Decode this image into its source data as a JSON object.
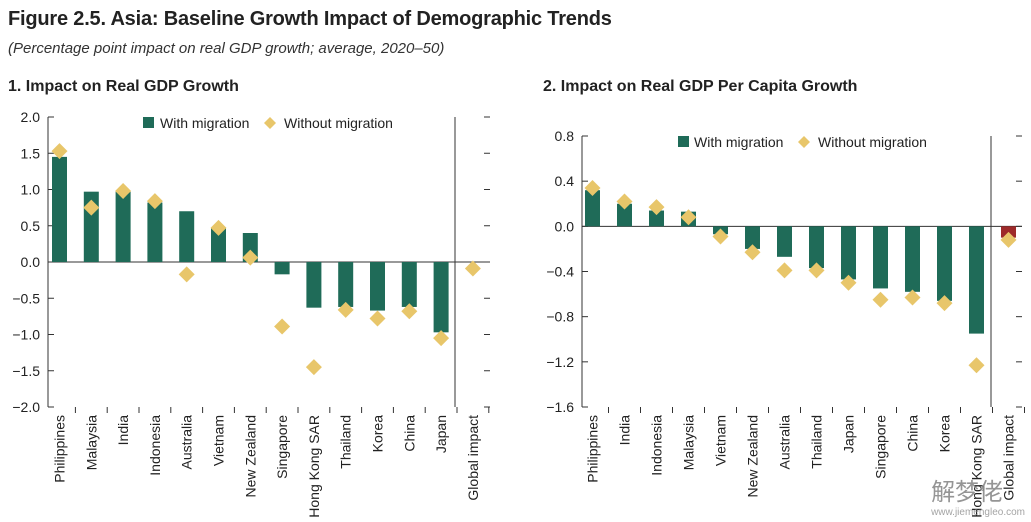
{
  "figure_title": "Figure 2.5. Asia: Baseline Growth Impact of Demographic Trends",
  "figure_subtitle": "(Percentage point impact on real GDP growth; average, 2020–50)",
  "watermark": {
    "text": "解梦佬",
    "url": "www.jiemengleo.com"
  },
  "colors": {
    "bar": "#1f6b58",
    "diamond": "#e8c66a",
    "negative_global_bar": "#9e2a2a"
  },
  "chart_data": [
    {
      "type": "bar",
      "title": "1. Impact on Real GDP Growth",
      "categories": [
        "Philippines",
        "Malaysia",
        "India",
        "Indonesia",
        "Australia",
        "Vietnam",
        "New Zealand",
        "Singapore",
        "Hong Kong SAR",
        "Thailand",
        "Korea",
        "China",
        "Japan",
        "Global impact"
      ],
      "series": [
        {
          "name": "With migration",
          "values": [
            1.45,
            0.97,
            0.97,
            0.82,
            0.7,
            0.47,
            0.4,
            -0.17,
            -0.63,
            -0.62,
            -0.67,
            -0.62,
            -0.97,
            0
          ]
        },
        {
          "name": "Without migration",
          "values": [
            1.53,
            0.75,
            0.98,
            0.84,
            -0.17,
            0.47,
            0.06,
            -0.89,
            -1.45,
            -0.66,
            -0.78,
            -0.68,
            -1.05,
            -0.09
          ]
        }
      ],
      "yticks": [
        "2.0",
        "1.5",
        "1.0",
        "0.5",
        "0.0",
        "−0.5",
        "−1.0",
        "−1.5",
        "−2.0"
      ],
      "ylim": [
        -2.0,
        2.0
      ],
      "legend": [
        "With migration",
        "Without migration"
      ]
    },
    {
      "type": "bar",
      "title": "2. Impact on Real GDP Per Capita Growth",
      "categories": [
        "Philippines",
        "India",
        "Indonesia",
        "Malaysia",
        "Vietnam",
        "New Zealand",
        "Australia",
        "Thailand",
        "Japan",
        "Singapore",
        "China",
        "Korea",
        "Hong Kong SAR",
        "Global impact"
      ],
      "series": [
        {
          "name": "With migration",
          "values": [
            0.32,
            0.2,
            0.14,
            0.13,
            -0.07,
            -0.2,
            -0.27,
            -0.37,
            -0.47,
            -0.55,
            -0.58,
            -0.66,
            -0.95,
            -0.1
          ]
        },
        {
          "name": "Without migration",
          "values": [
            0.34,
            0.22,
            0.17,
            0.08,
            -0.09,
            -0.23,
            -0.39,
            -0.39,
            -0.5,
            -0.65,
            -0.63,
            -0.68,
            -1.23,
            -0.12
          ]
        }
      ],
      "yticks": [
        "0.8",
        "0.4",
        "0.0",
        "−0.4",
        "−0.8",
        "−1.2",
        "−1.6"
      ],
      "ylim": [
        -1.6,
        0.8
      ],
      "legend": [
        "With migration",
        "Without migration"
      ]
    }
  ]
}
